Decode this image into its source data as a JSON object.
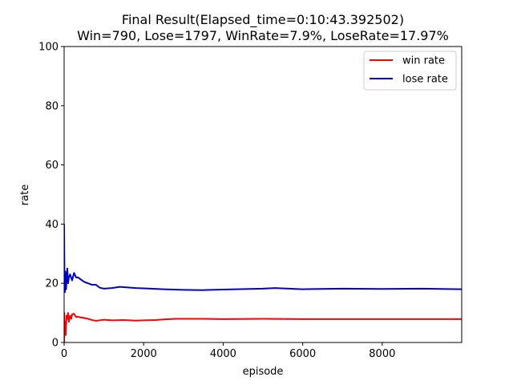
{
  "chart_data": {
    "type": "line",
    "title_line1": "Final Result(Elapsed_time=0:10:43.392502)",
    "title_line2": "Win=790, Lose=1797, WinRate=7.9%, LoseRate=17.97%",
    "xlabel": "episode",
    "ylabel": "rate",
    "xlim": [
      0,
      9999
    ],
    "ylim": [
      0,
      100
    ],
    "xticks": [
      0,
      2000,
      4000,
      6000,
      8000
    ],
    "xtick_labels": [
      "0",
      "2000",
      "4000",
      "6000",
      "8000"
    ],
    "yticks": [
      0,
      20,
      40,
      60,
      80,
      100
    ],
    "ytick_labels": [
      "0",
      "20",
      "40",
      "60",
      "80",
      "100"
    ],
    "grid": false,
    "legend_position": "top-right",
    "series": [
      {
        "name": "win rate",
        "color": "#ff0000",
        "x": [
          0,
          5,
          10,
          20,
          30,
          40,
          50,
          60,
          80,
          100,
          120,
          150,
          180,
          200,
          250,
          300,
          350,
          400,
          500,
          600,
          700,
          800,
          900,
          1000,
          1200,
          1500,
          1800,
          2000,
          2300,
          2500,
          2800,
          3000,
          3500,
          4000,
          5000,
          6000,
          7000,
          8000,
          9000,
          9999
        ],
        "y": [
          0,
          10,
          5,
          3,
          7,
          2.5,
          6,
          9,
          8,
          10,
          7,
          9,
          8,
          9.5,
          9.7,
          8.6,
          8.7,
          8.5,
          8.3,
          8.0,
          7.6,
          7.3,
          7.5,
          7.7,
          7.5,
          7.6,
          7.4,
          7.5,
          7.6,
          7.8,
          8.0,
          8.0,
          8.0,
          7.9,
          8.0,
          7.9,
          7.9,
          7.9,
          7.9,
          7.9
        ]
      },
      {
        "name": "lose rate",
        "color": "#0000cc",
        "x": [
          0,
          5,
          10,
          20,
          30,
          40,
          50,
          60,
          80,
          100,
          120,
          150,
          200,
          250,
          300,
          350,
          400,
          500,
          600,
          700,
          800,
          900,
          1000,
          1200,
          1400,
          1600,
          1800,
          2000,
          2500,
          3000,
          3500,
          4000,
          5000,
          5300,
          6000,
          7000,
          8000,
          9000,
          9999
        ],
        "y": [
          40,
          30,
          20,
          17,
          24,
          21,
          18,
          21,
          25,
          20,
          22,
          23,
          21,
          23.5,
          22,
          22,
          21.5,
          20.5,
          20,
          19.5,
          19.5,
          18.5,
          18.2,
          18.4,
          18.8,
          18.6,
          18.4,
          18.3,
          18.0,
          17.8,
          17.7,
          17.9,
          18.2,
          18.4,
          18.0,
          18.2,
          18.1,
          18.2,
          18.0
        ]
      }
    ]
  }
}
